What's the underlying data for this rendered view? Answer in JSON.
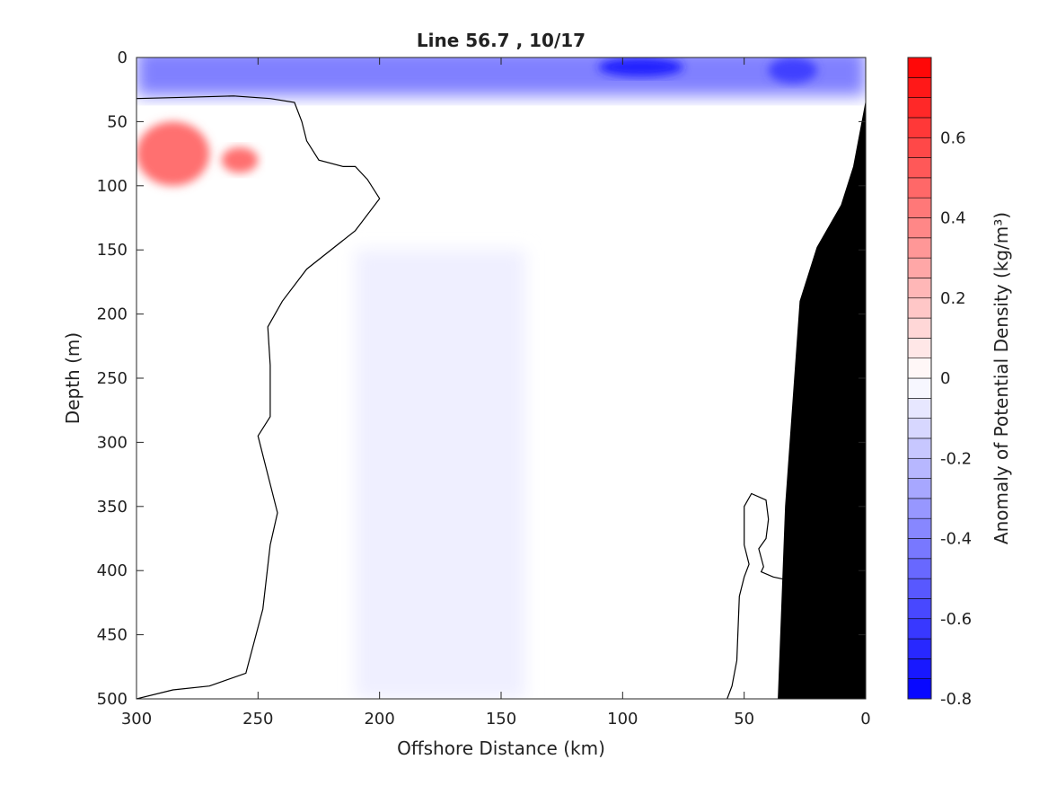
{
  "chart_data": {
    "type": "heatmap",
    "title": "Line 56.7 , 10/17",
    "xlabel": "Offshore Distance (km)",
    "ylabel": "Depth (m)",
    "colorbar_label": "Anomaly of Potential Density (kg/m³)",
    "xlim": [
      300,
      0
    ],
    "ylim": [
      0,
      500
    ],
    "x_reversed": true,
    "y_reversed": true,
    "x_ticks": [
      300,
      250,
      200,
      150,
      100,
      50,
      0
    ],
    "y_ticks": [
      0,
      50,
      100,
      150,
      200,
      250,
      300,
      350,
      400,
      450,
      500
    ],
    "colorbar_range": [
      -0.8,
      0.8
    ],
    "colorbar_step": 0.05,
    "colorbar_ticks": [
      0.6,
      0.4,
      0.2,
      0,
      -0.2,
      -0.4,
      -0.6,
      -0.8
    ],
    "colormap": {
      "negative": "#0000ff",
      "zero": "#ffffff",
      "positive": "#ff0000"
    },
    "grid": false,
    "bathymetry_color": "#000000",
    "bathymetry": [
      [
        36,
        500
      ],
      [
        33,
        350
      ],
      [
        27,
        190
      ],
      [
        20,
        148
      ],
      [
        10,
        115
      ],
      [
        5,
        85
      ],
      [
        0,
        35
      ]
    ],
    "zero_contours": [
      [
        [
          300,
          500
        ],
        [
          285,
          493
        ],
        [
          270,
          490
        ],
        [
          255,
          480
        ],
        [
          248,
          430
        ],
        [
          245,
          380
        ],
        [
          242,
          355
        ],
        [
          248,
          310
        ],
        [
          250,
          295
        ],
        [
          245,
          280
        ],
        [
          245,
          240
        ],
        [
          246,
          210
        ],
        [
          240,
          190
        ],
        [
          230,
          165
        ],
        [
          210,
          135
        ],
        [
          200,
          110
        ],
        [
          205,
          95
        ],
        [
          210,
          85
        ],
        [
          215,
          85
        ],
        [
          225,
          80
        ],
        [
          230,
          65
        ],
        [
          232,
          50
        ],
        [
          235,
          35
        ],
        [
          245,
          32
        ],
        [
          260,
          30
        ],
        [
          280,
          31
        ],
        [
          300,
          32
        ]
      ],
      [
        [
          57,
          500
        ],
        [
          55,
          490
        ],
        [
          53,
          470
        ],
        [
          52,
          420
        ],
        [
          50,
          405
        ],
        [
          48,
          395
        ],
        [
          50,
          380
        ],
        [
          50,
          350
        ],
        [
          47,
          340
        ],
        [
          41,
          345
        ],
        [
          40,
          360
        ],
        [
          41,
          375
        ],
        [
          44,
          383
        ],
        [
          42,
          397
        ],
        [
          43,
          401
        ],
        [
          38,
          405
        ],
        [
          33,
          407
        ]
      ]
    ],
    "anomaly_regions": [
      {
        "name": "surface-layer",
        "value": -0.4,
        "x": [
          0,
          300
        ],
        "depth": [
          0,
          30
        ]
      },
      {
        "name": "near-surface-core-100km",
        "value": -0.7,
        "x": [
          75,
          110
        ],
        "depth": [
          0,
          15
        ]
      },
      {
        "name": "near-surface-core-30km",
        "value": -0.6,
        "x": [
          20,
          40
        ],
        "depth": [
          0,
          20
        ]
      },
      {
        "name": "warm-anomaly-core",
        "value": 0.45,
        "x": [
          270,
          300
        ],
        "depth": [
          50,
          100
        ]
      },
      {
        "name": "warm-anomaly-core-2",
        "value": 0.45,
        "x": [
          250,
          265
        ],
        "depth": [
          70,
          90
        ]
      },
      {
        "name": "deep-weak-band",
        "value": -0.05,
        "x": [
          140,
          210
        ],
        "depth": [
          150,
          500
        ]
      }
    ]
  }
}
